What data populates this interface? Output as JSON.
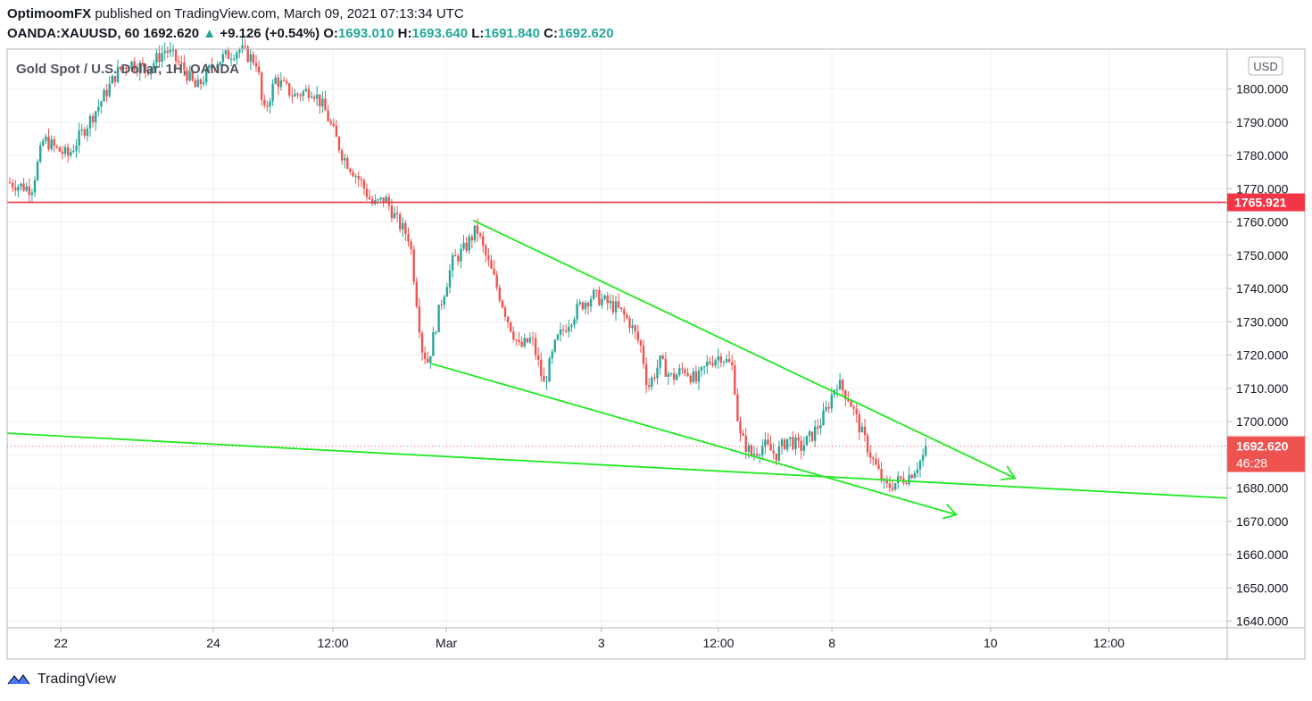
{
  "header": {
    "author": "OptimoomFX",
    "published_text": " published on TradingView.com, March 09, 2021 07:13:34 UTC",
    "symbol": "OANDA:XAUUSD, 60",
    "last": "1692.620",
    "change": "+9.126 (+0.54%)",
    "o_label": "O:",
    "o_value": "1693.010",
    "h_label": "H:",
    "h_value": "1693.640",
    "l_label": "L:",
    "l_value": "1691.840",
    "c_label": "C:",
    "c_value": "1692.620"
  },
  "footer": {
    "brand": "TradingView"
  },
  "chart_data": {
    "type": "candlestick",
    "title": "Gold Spot / U.S. Dollar, 1H, OANDA",
    "currency_badge": "USD",
    "y_range": [
      1638,
      1812
    ],
    "y_ticks": [
      1640,
      1650,
      1660,
      1670,
      1680,
      1690,
      1700,
      1710,
      1720,
      1730,
      1740,
      1750,
      1760,
      1770,
      1780,
      1790,
      1800
    ],
    "x_range": [
      0,
      1.0
    ],
    "x_ticks": [
      {
        "label": "22",
        "t": 0.044
      },
      {
        "label": "24",
        "t": 0.169
      },
      {
        "label": "12:00",
        "t": 0.267
      },
      {
        "label": "Mar",
        "t": 0.36
      },
      {
        "label": "3",
        "t": 0.487
      },
      {
        "label": "12:00",
        "t": 0.583
      },
      {
        "label": "8",
        "t": 0.676
      },
      {
        "label": "10",
        "t": 0.806
      },
      {
        "label": "12:00",
        "t": 0.903
      }
    ],
    "price_path": [
      [
        0.0,
        1772
      ],
      [
        0.02,
        1770
      ],
      [
        0.03,
        1785
      ],
      [
        0.04,
        1782
      ],
      [
        0.05,
        1780
      ],
      [
        0.06,
        1786
      ],
      [
        0.075,
        1795
      ],
      [
        0.09,
        1805
      ],
      [
        0.1,
        1808
      ],
      [
        0.115,
        1806
      ],
      [
        0.13,
        1812
      ],
      [
        0.145,
        1806
      ],
      [
        0.155,
        1800
      ],
      [
        0.17,
        1808
      ],
      [
        0.19,
        1812
      ],
      [
        0.205,
        1808
      ],
      [
        0.21,
        1792
      ],
      [
        0.22,
        1803
      ],
      [
        0.235,
        1798
      ],
      [
        0.25,
        1800
      ],
      [
        0.26,
        1794
      ],
      [
        0.275,
        1780
      ],
      [
        0.29,
        1772
      ],
      [
        0.3,
        1765
      ],
      [
        0.31,
        1767
      ],
      [
        0.32,
        1760
      ],
      [
        0.33,
        1755
      ],
      [
        0.34,
        1722
      ],
      [
        0.345,
        1718
      ],
      [
        0.355,
        1735
      ],
      [
        0.365,
        1748
      ],
      [
        0.375,
        1752
      ],
      [
        0.385,
        1758
      ],
      [
        0.39,
        1752
      ],
      [
        0.4,
        1742
      ],
      [
        0.41,
        1731
      ],
      [
        0.42,
        1722
      ],
      [
        0.43,
        1725
      ],
      [
        0.44,
        1711
      ],
      [
        0.45,
        1724
      ],
      [
        0.46,
        1730
      ],
      [
        0.47,
        1735
      ],
      [
        0.48,
        1738
      ],
      [
        0.49,
        1736
      ],
      [
        0.5,
        1734
      ],
      [
        0.51,
        1730
      ],
      [
        0.52,
        1722
      ],
      [
        0.525,
        1710
      ],
      [
        0.535,
        1718
      ],
      [
        0.545,
        1713
      ],
      [
        0.555,
        1716
      ],
      [
        0.565,
        1712
      ],
      [
        0.575,
        1718
      ],
      [
        0.585,
        1720
      ],
      [
        0.595,
        1716
      ],
      [
        0.6,
        1696
      ],
      [
        0.61,
        1690
      ],
      [
        0.62,
        1693
      ],
      [
        0.63,
        1690
      ],
      [
        0.64,
        1695
      ],
      [
        0.65,
        1692
      ],
      [
        0.66,
        1696
      ],
      [
        0.67,
        1702
      ],
      [
        0.68,
        1712
      ],
      [
        0.69,
        1707
      ],
      [
        0.7,
        1697
      ],
      [
        0.71,
        1688
      ],
      [
        0.72,
        1680
      ],
      [
        0.73,
        1682
      ],
      [
        0.74,
        1684
      ],
      [
        0.75,
        1689
      ],
      [
        0.755,
        1692.62
      ]
    ],
    "trendlines": [
      {
        "from": [
          0.382,
          1760.5
        ],
        "to": [
          0.826,
          1683
        ]
      },
      {
        "from": [
          0.347,
          1717.5
        ],
        "to": [
          0.778,
          1672
        ]
      },
      {
        "from": [
          0.0,
          1696.5
        ],
        "to": [
          1.0,
          1677
        ]
      }
    ],
    "horizontal_levels": [
      {
        "value": 1765.921,
        "label": "1765.921",
        "color": "#f23645"
      }
    ],
    "last_price": {
      "value": 1692.62,
      "label": "1692.620",
      "countdown": "46:28",
      "color": "#ef5350"
    },
    "colors": {
      "up": "#26a69a",
      "down": "#ef5350",
      "trendline": "#1fea1f",
      "grid": "#eef0f3"
    },
    "grid": true
  }
}
